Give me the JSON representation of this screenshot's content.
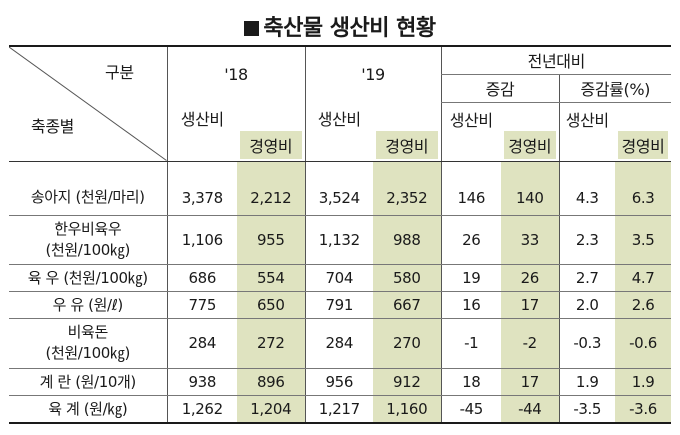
{
  "title": "축산물 생산비 현황",
  "header": {
    "corner_top": "구분",
    "corner_bottom": "축종별",
    "year1": "'18",
    "year2": "'19",
    "prev": "전년대비",
    "change": "증감",
    "change_rate": "증감률(%)",
    "prod_cost": "생산비",
    "mgmt_cost": "경영비"
  },
  "rows": [
    {
      "label": "송아지 (천원/마리)",
      "v": [
        "3,378",
        "2,212",
        "3,524",
        "2,352",
        "146",
        "140",
        "4.3",
        "6.3"
      ]
    },
    {
      "label1": "한우비육우",
      "label2": "(천원/100㎏)",
      "v": [
        "1,106",
        "955",
        "1,132",
        "988",
        "26",
        "33",
        "2.3",
        "3.5"
      ]
    },
    {
      "label": "육 우 (천원/100㎏)",
      "v": [
        "686",
        "554",
        "704",
        "580",
        "19",
        "26",
        "2.7",
        "4.7"
      ]
    },
    {
      "label": "우 유 (원/ℓ)",
      "v": [
        "775",
        "650",
        "791",
        "667",
        "16",
        "17",
        "2.0",
        "2.6"
      ]
    },
    {
      "label1": "비육돈",
      "label2": "(천원/100㎏)",
      "v": [
        "284",
        "272",
        "284",
        "270",
        "-1",
        "-2",
        "-0.3",
        "-0.6"
      ]
    },
    {
      "label": "계 란 (원/10개)",
      "v": [
        "938",
        "896",
        "956",
        "912",
        "18",
        "17",
        "1.9",
        "1.9"
      ]
    },
    {
      "label": "육 계 (원/㎏)",
      "v": [
        "1,262",
        "1,204",
        "1,217",
        "1,160",
        "-45",
        "-44",
        "-3.5",
        "-3.6"
      ]
    }
  ]
}
